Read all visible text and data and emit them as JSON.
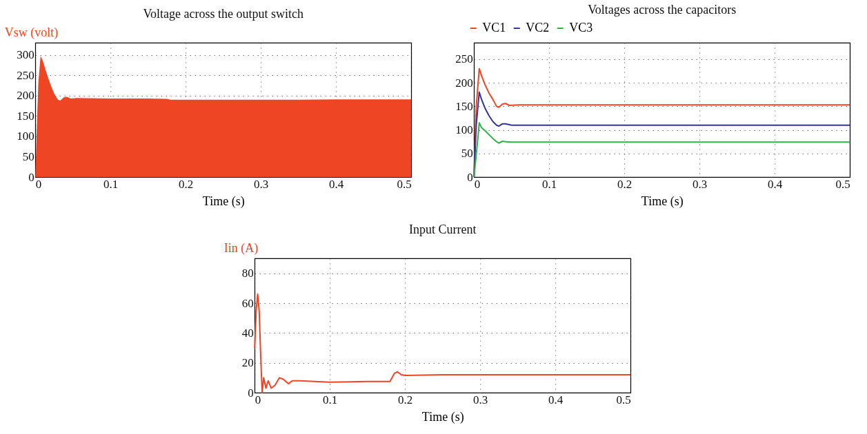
{
  "chart_data": [
    {
      "type": "area",
      "title": "Voltage across the output switch",
      "xlabel": "Time (s)",
      "ylabel": "Vsw (volt)",
      "xlim": [
        0,
        0.5
      ],
      "xticks": [
        0,
        0.1,
        0.2,
        0.3,
        0.4,
        0.5
      ],
      "ylim": [
        0,
        330
      ],
      "yticks": [
        0,
        50,
        100,
        150,
        200,
        250,
        300
      ],
      "grid": true,
      "series": [
        {
          "color": "#ee4524",
          "x": [
            0,
            0.002,
            0.004,
            0.007,
            0.01,
            0.015,
            0.02,
            0.025,
            0.03,
            0.033,
            0.038,
            0.042,
            0.047,
            0.055,
            0.1,
            0.15,
            0.175,
            0.18,
            0.25,
            0.3,
            0.35,
            0.4,
            0.45,
            0.5
          ],
          "values": [
            0,
            120,
            230,
            298,
            285,
            255,
            228,
            205,
            190,
            188,
            196,
            197,
            193,
            194,
            193,
            193,
            192,
            190,
            190,
            190,
            190,
            191,
            191,
            191
          ]
        }
      ]
    },
    {
      "type": "line",
      "title": "Voltages across the capacitors",
      "xlabel": "Time (s)",
      "xlim": [
        0,
        0.5
      ],
      "xticks": [
        0,
        0.1,
        0.2,
        0.3,
        0.4,
        0.5
      ],
      "ylim": [
        0,
        285
      ],
      "yticks": [
        0,
        50,
        100,
        150,
        200,
        250
      ],
      "grid": true,
      "legend": "top left",
      "series": [
        {
          "name": "VC1",
          "color": "#ee4524",
          "x": [
            0,
            0.003,
            0.007,
            0.01,
            0.015,
            0.02,
            0.025,
            0.03,
            0.033,
            0.038,
            0.042,
            0.047,
            0.06,
            0.1,
            0.175,
            0.5
          ],
          "values": [
            0,
            150,
            230,
            215,
            195,
            178,
            165,
            150,
            148,
            155,
            156,
            152,
            153,
            153,
            153,
            153
          ]
        },
        {
          "name": "VC2",
          "color": "#34349a",
          "x": [
            0,
            0.003,
            0.007,
            0.01,
            0.015,
            0.02,
            0.025,
            0.03,
            0.033,
            0.038,
            0.042,
            0.05,
            0.1,
            0.2,
            0.3,
            0.4,
            0.5
          ],
          "values": [
            0,
            110,
            180,
            165,
            145,
            130,
            118,
            110,
            108,
            113,
            113,
            110,
            110,
            110,
            110,
            110,
            110
          ]
        },
        {
          "name": "VC3",
          "color": "#2fb24a",
          "x": [
            0,
            0.005,
            0.007,
            0.01,
            0.015,
            0.02,
            0.025,
            0.03,
            0.033,
            0.038,
            0.042,
            0.05,
            0.1,
            0.2,
            0.5
          ],
          "values": [
            0,
            80,
            115,
            105,
            98,
            90,
            82,
            75,
            72,
            76,
            75,
            74,
            74,
            74,
            74
          ]
        }
      ]
    },
    {
      "type": "line",
      "title": "Input Current",
      "xlabel": "Time (s)",
      "ylabel": "Iin (A)",
      "xlim": [
        0,
        0.5
      ],
      "xticks": [
        0,
        0.1,
        0.2,
        0.3,
        0.4,
        0.5
      ],
      "ylim": [
        0,
        90
      ],
      "yticks": [
        0,
        20,
        40,
        60,
        80
      ],
      "grid": true,
      "series": [
        {
          "color": "#ee4524",
          "x": [
            0,
            0.002,
            0.004,
            0.006,
            0.008,
            0.01,
            0.012,
            0.015,
            0.018,
            0.022,
            0.027,
            0.033,
            0.038,
            0.045,
            0.05,
            0.06,
            0.08,
            0.1,
            0.15,
            0.18,
            0.186,
            0.19,
            0.195,
            0.2,
            0.25,
            0.3,
            0.35,
            0.4,
            0.45,
            0.5
          ],
          "values": [
            30,
            55,
            66,
            55,
            25,
            0,
            10,
            3,
            8,
            3,
            5,
            10,
            9,
            6,
            8,
            8,
            7.5,
            7,
            7.5,
            7.5,
            13,
            14,
            12,
            11.5,
            12,
            12,
            12,
            12,
            12,
            12
          ]
        }
      ]
    }
  ]
}
